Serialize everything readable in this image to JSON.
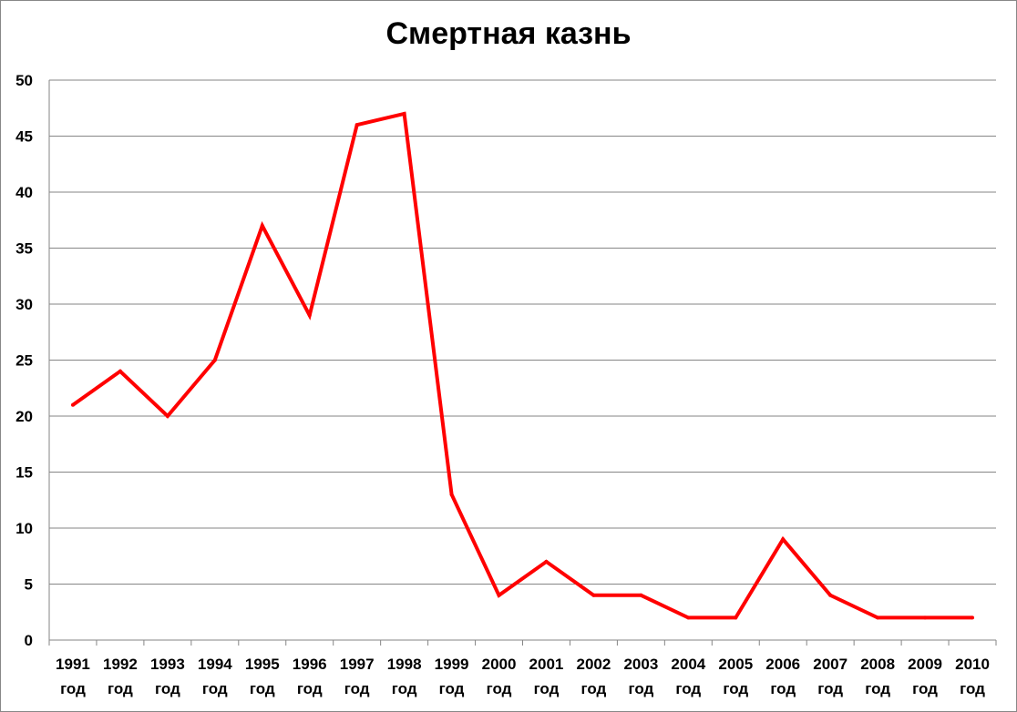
{
  "chart_data": {
    "type": "line",
    "title": "Смертная казнь",
    "xlabel": "",
    "ylabel": "",
    "ylim": [
      0,
      50
    ],
    "y_ticks": [
      0,
      5,
      10,
      15,
      20,
      25,
      30,
      35,
      40,
      45,
      50
    ],
    "grid": true,
    "legend": "none",
    "categories": [
      [
        "1991",
        "год"
      ],
      [
        "1992",
        "год"
      ],
      [
        "1993",
        "год"
      ],
      [
        "1994",
        "год"
      ],
      [
        "1995",
        "год"
      ],
      [
        "1996",
        "год"
      ],
      [
        "1997",
        "год"
      ],
      [
        "1998",
        "год"
      ],
      [
        "1999",
        "год"
      ],
      [
        "2000",
        "год"
      ],
      [
        "2001",
        "год"
      ],
      [
        "2002",
        "год"
      ],
      [
        "2003",
        "год"
      ],
      [
        "2004",
        "год"
      ],
      [
        "2005",
        "год"
      ],
      [
        "2006",
        "год"
      ],
      [
        "2007",
        "год"
      ],
      [
        "2008",
        "год"
      ],
      [
        "2009",
        "год"
      ],
      [
        "2010",
        "год"
      ]
    ],
    "series": [
      {
        "values": [
          21,
          24,
          20,
          25,
          37,
          29,
          46,
          47,
          13,
          4,
          7,
          4,
          4,
          2,
          2,
          9,
          4,
          2,
          2,
          2
        ],
        "color": "#ff0000"
      }
    ]
  }
}
